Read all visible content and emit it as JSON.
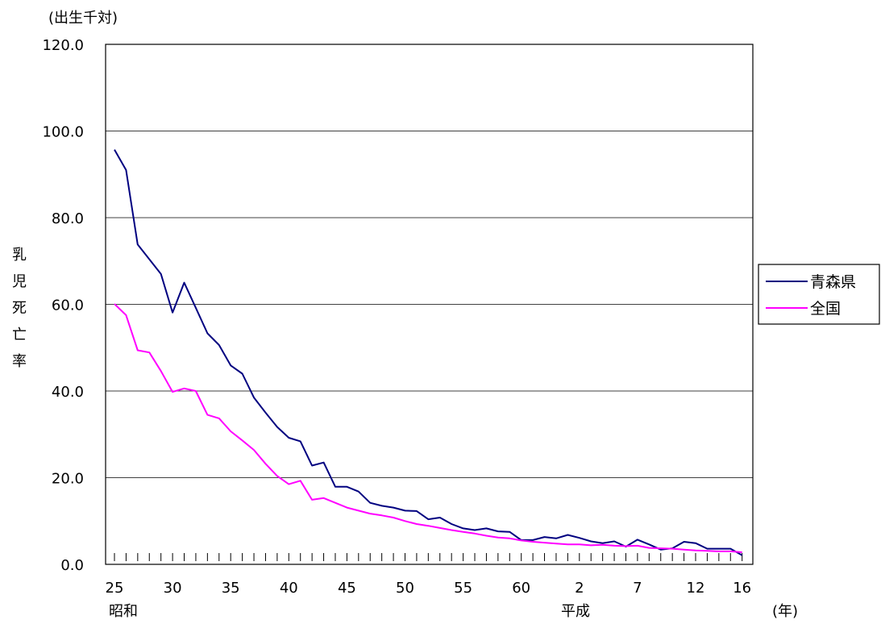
{
  "chart_data": {
    "type": "line",
    "unit_label": "(出生千対)",
    "ylabel": "乳児死亡率",
    "xlabel": "(年)",
    "era_labels": {
      "showa": "昭和",
      "heisei": "平成"
    },
    "ylim": [
      0,
      120
    ],
    "y_ticks": [
      "0.0",
      "20.0",
      "40.0",
      "60.0",
      "80.0",
      "100.0",
      "120.0"
    ],
    "grid": "horizontal",
    "legend_position": "right",
    "x_tick_labels": [
      "25",
      "30",
      "35",
      "40",
      "45",
      "50",
      "55",
      "60",
      "2",
      "7",
      "12",
      "16"
    ],
    "years": [
      "昭和25",
      "昭和26",
      "昭和27",
      "昭和28",
      "昭和29",
      "昭和30",
      "昭和31",
      "昭和32",
      "昭和33",
      "昭和34",
      "昭和35",
      "昭和36",
      "昭和37",
      "昭和38",
      "昭和39",
      "昭和40",
      "昭和41",
      "昭和42",
      "昭和43",
      "昭和44",
      "昭和45",
      "昭和46",
      "昭和47",
      "昭和48",
      "昭和49",
      "昭和50",
      "昭和51",
      "昭和52",
      "昭和53",
      "昭和54",
      "昭和55",
      "昭和56",
      "昭和57",
      "昭和58",
      "昭和59",
      "昭和60",
      "昭和61",
      "昭和62",
      "昭和63",
      "平成元",
      "平成2",
      "平成3",
      "平成4",
      "平成5",
      "平成6",
      "平成7",
      "平成8",
      "平成9",
      "平成10",
      "平成11",
      "平成12",
      "平成13",
      "平成14",
      "平成15",
      "平成16"
    ],
    "series": [
      {
        "name": "青森県",
        "color": "#000080",
        "values": [
          95.7,
          91.0,
          73.8,
          70.4,
          67.0,
          58.1,
          65.0,
          59.2,
          53.3,
          50.6,
          45.9,
          44.0,
          38.5,
          35.0,
          31.7,
          29.2,
          28.4,
          22.8,
          23.5,
          17.9,
          17.9,
          16.8,
          14.2,
          13.5,
          13.1,
          12.4,
          12.3,
          10.4,
          10.8,
          9.3,
          8.3,
          7.9,
          8.3,
          7.6,
          7.5,
          5.6,
          5.6,
          6.3,
          6.0,
          6.8,
          6.1,
          5.3,
          4.9,
          5.3,
          4.1,
          5.7,
          4.6,
          3.4,
          3.7,
          5.2,
          4.9,
          3.6,
          3.6,
          3.6,
          2.1
        ]
      },
      {
        "name": "全国",
        "color": "#ff00ff",
        "values": [
          60.1,
          57.5,
          49.4,
          48.9,
          44.6,
          39.8,
          40.6,
          40.0,
          34.5,
          33.7,
          30.7,
          28.6,
          26.4,
          23.2,
          20.4,
          18.5,
          19.3,
          14.9,
          15.3,
          14.2,
          13.1,
          12.4,
          11.7,
          11.3,
          10.8,
          10.0,
          9.3,
          8.9,
          8.4,
          7.9,
          7.5,
          7.1,
          6.6,
          6.2,
          6.0,
          5.5,
          5.2,
          5.0,
          4.8,
          4.6,
          4.6,
          4.4,
          4.5,
          4.3,
          4.2,
          4.3,
          3.8,
          3.7,
          3.6,
          3.4,
          3.2,
          3.1,
          3.0,
          3.0,
          2.8
        ]
      }
    ]
  }
}
